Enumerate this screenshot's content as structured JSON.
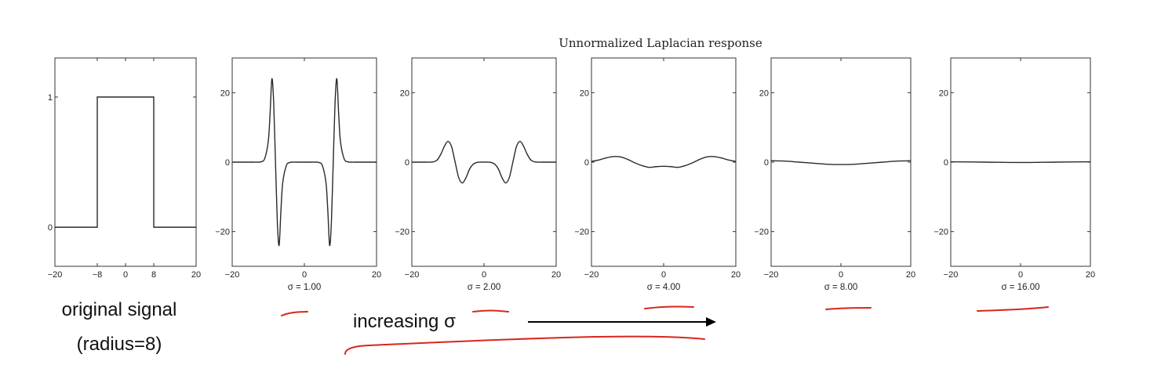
{
  "title": "Unnormalized Laplacian response",
  "colors": {
    "curve": "#2a2a2a",
    "annotation_red": "#d8261c",
    "arrow": "#000000"
  },
  "chart_data": [
    {
      "type": "line",
      "name": "original_signal",
      "series": [
        {
          "x": [
            -20,
            -8,
            -8,
            8,
            8,
            20
          ],
          "y": [
            0,
            0,
            1,
            1,
            0,
            0
          ]
        }
      ],
      "xlim": [
        -20,
        20
      ],
      "ylim": [
        -0.3,
        1.3
      ],
      "xticks": [
        -20,
        -8,
        0,
        8,
        20
      ],
      "yticks": [
        0,
        1
      ],
      "xlabel": ""
    },
    {
      "type": "line",
      "name": "sigma_1",
      "sigma": 1,
      "x": [
        -20,
        -19,
        -18,
        -17,
        -16,
        -15,
        -14,
        -13,
        -12,
        -11,
        -10,
        -9.5,
        -9,
        -8.5,
        -8,
        -7.5,
        -7,
        -6.5,
        -6,
        -5,
        -4,
        -3,
        -2,
        -1,
        0,
        1,
        2,
        3,
        4,
        5,
        6,
        6.5,
        7,
        7.5,
        8,
        8.5,
        9,
        9.5,
        10,
        11,
        12,
        13,
        14,
        15,
        16,
        17,
        18,
        19,
        20
      ],
      "y": [
        0,
        0,
        0,
        0,
        0,
        0,
        0,
        0,
        0.1,
        1,
        6,
        14,
        24,
        17,
        0,
        -17,
        -24,
        -14,
        -6,
        -1,
        -0.1,
        0,
        0,
        0,
        0,
        0,
        0,
        0,
        -0.1,
        -1,
        -6,
        -14,
        -24,
        -17,
        0,
        17,
        24,
        14,
        6,
        1,
        0.1,
        0,
        0,
        0,
        0,
        0,
        0,
        0,
        0
      ],
      "xlim": [
        -20,
        20
      ],
      "ylim": [
        -30,
        30
      ],
      "xticks": [
        -20,
        0,
        20
      ],
      "yticks": [
        -20,
        0,
        20
      ],
      "xlabel": "σ = 1.00"
    },
    {
      "type": "line",
      "name": "sigma_2",
      "sigma": 2,
      "x": [
        -20,
        -19,
        -18,
        -17,
        -16,
        -15,
        -14,
        -13,
        -12,
        -11,
        -10,
        -9,
        -8,
        -7,
        -6,
        -5,
        -4,
        -3,
        -2,
        -1,
        0,
        1,
        2,
        3,
        4,
        5,
        6,
        7,
        8,
        9,
        10,
        11,
        12,
        13,
        14,
        15,
        16,
        17,
        18,
        19,
        20
      ],
      "y": [
        0,
        0,
        0,
        0,
        0,
        0,
        0.1,
        0.6,
        2.2,
        4.5,
        6,
        4.5,
        0,
        -4.5,
        -6,
        -4.5,
        -2,
        -0.6,
        -0.1,
        0,
        0,
        0,
        -0.1,
        -0.6,
        -2,
        -4.5,
        -6,
        -4.5,
        0,
        4.5,
        6,
        4.5,
        2.2,
        0.6,
        0.1,
        0,
        0,
        0,
        0,
        0,
        0
      ],
      "xlim": [
        -20,
        20
      ],
      "ylim": [
        -30,
        30
      ],
      "xticks": [
        -20,
        0,
        20
      ],
      "yticks": [
        -20,
        0,
        20
      ],
      "xlabel": "σ = 2.00"
    },
    {
      "type": "line",
      "name": "sigma_4",
      "sigma": 4,
      "x": [
        -20,
        -18,
        -16,
        -14,
        -12,
        -10,
        -8,
        -6,
        -4,
        -2,
        0,
        2,
        4,
        6,
        8,
        10,
        12,
        14,
        16,
        18,
        20
      ],
      "y": [
        0.2,
        0.6,
        1.2,
        1.6,
        1.5,
        0.8,
        -0.2,
        -1,
        -1.5,
        -1.3,
        -1.2,
        -1.3,
        -1.5,
        -1,
        -0.2,
        0.8,
        1.5,
        1.6,
        1.2,
        0.6,
        0.2
      ],
      "xlim": [
        -20,
        20
      ],
      "ylim": [
        -30,
        30
      ],
      "xticks": [
        -20,
        0,
        20
      ],
      "yticks": [
        -20,
        0,
        20
      ],
      "xlabel": "σ = 4.00"
    },
    {
      "type": "line",
      "name": "sigma_8",
      "sigma": 8,
      "x": [
        -20,
        -16,
        -12,
        -8,
        -4,
        0,
        4,
        8,
        12,
        16,
        20
      ],
      "y": [
        0.4,
        0.3,
        0,
        -0.3,
        -0.6,
        -0.7,
        -0.6,
        -0.3,
        0,
        0.3,
        0.4
      ],
      "xlim": [
        -20,
        20
      ],
      "ylim": [
        -30,
        30
      ],
      "xticks": [
        -20,
        0,
        20
      ],
      "yticks": [
        -20,
        0,
        20
      ],
      "xlabel": "σ = 8.00"
    },
    {
      "type": "line",
      "name": "sigma_16",
      "sigma": 16,
      "x": [
        -20,
        -10,
        0,
        10,
        20
      ],
      "y": [
        0.1,
        0,
        -0.1,
        0,
        0.1
      ],
      "xlim": [
        -20,
        20
      ],
      "ylim": [
        -30,
        30
      ],
      "xticks": [
        -20,
        0,
        20
      ],
      "yticks": [
        -20,
        0,
        20
      ],
      "xlabel": "σ = 16.00"
    }
  ],
  "annotations": {
    "original_line1": "original signal",
    "original_line2": "(radius=8)",
    "increasing": "increasing σ"
  }
}
